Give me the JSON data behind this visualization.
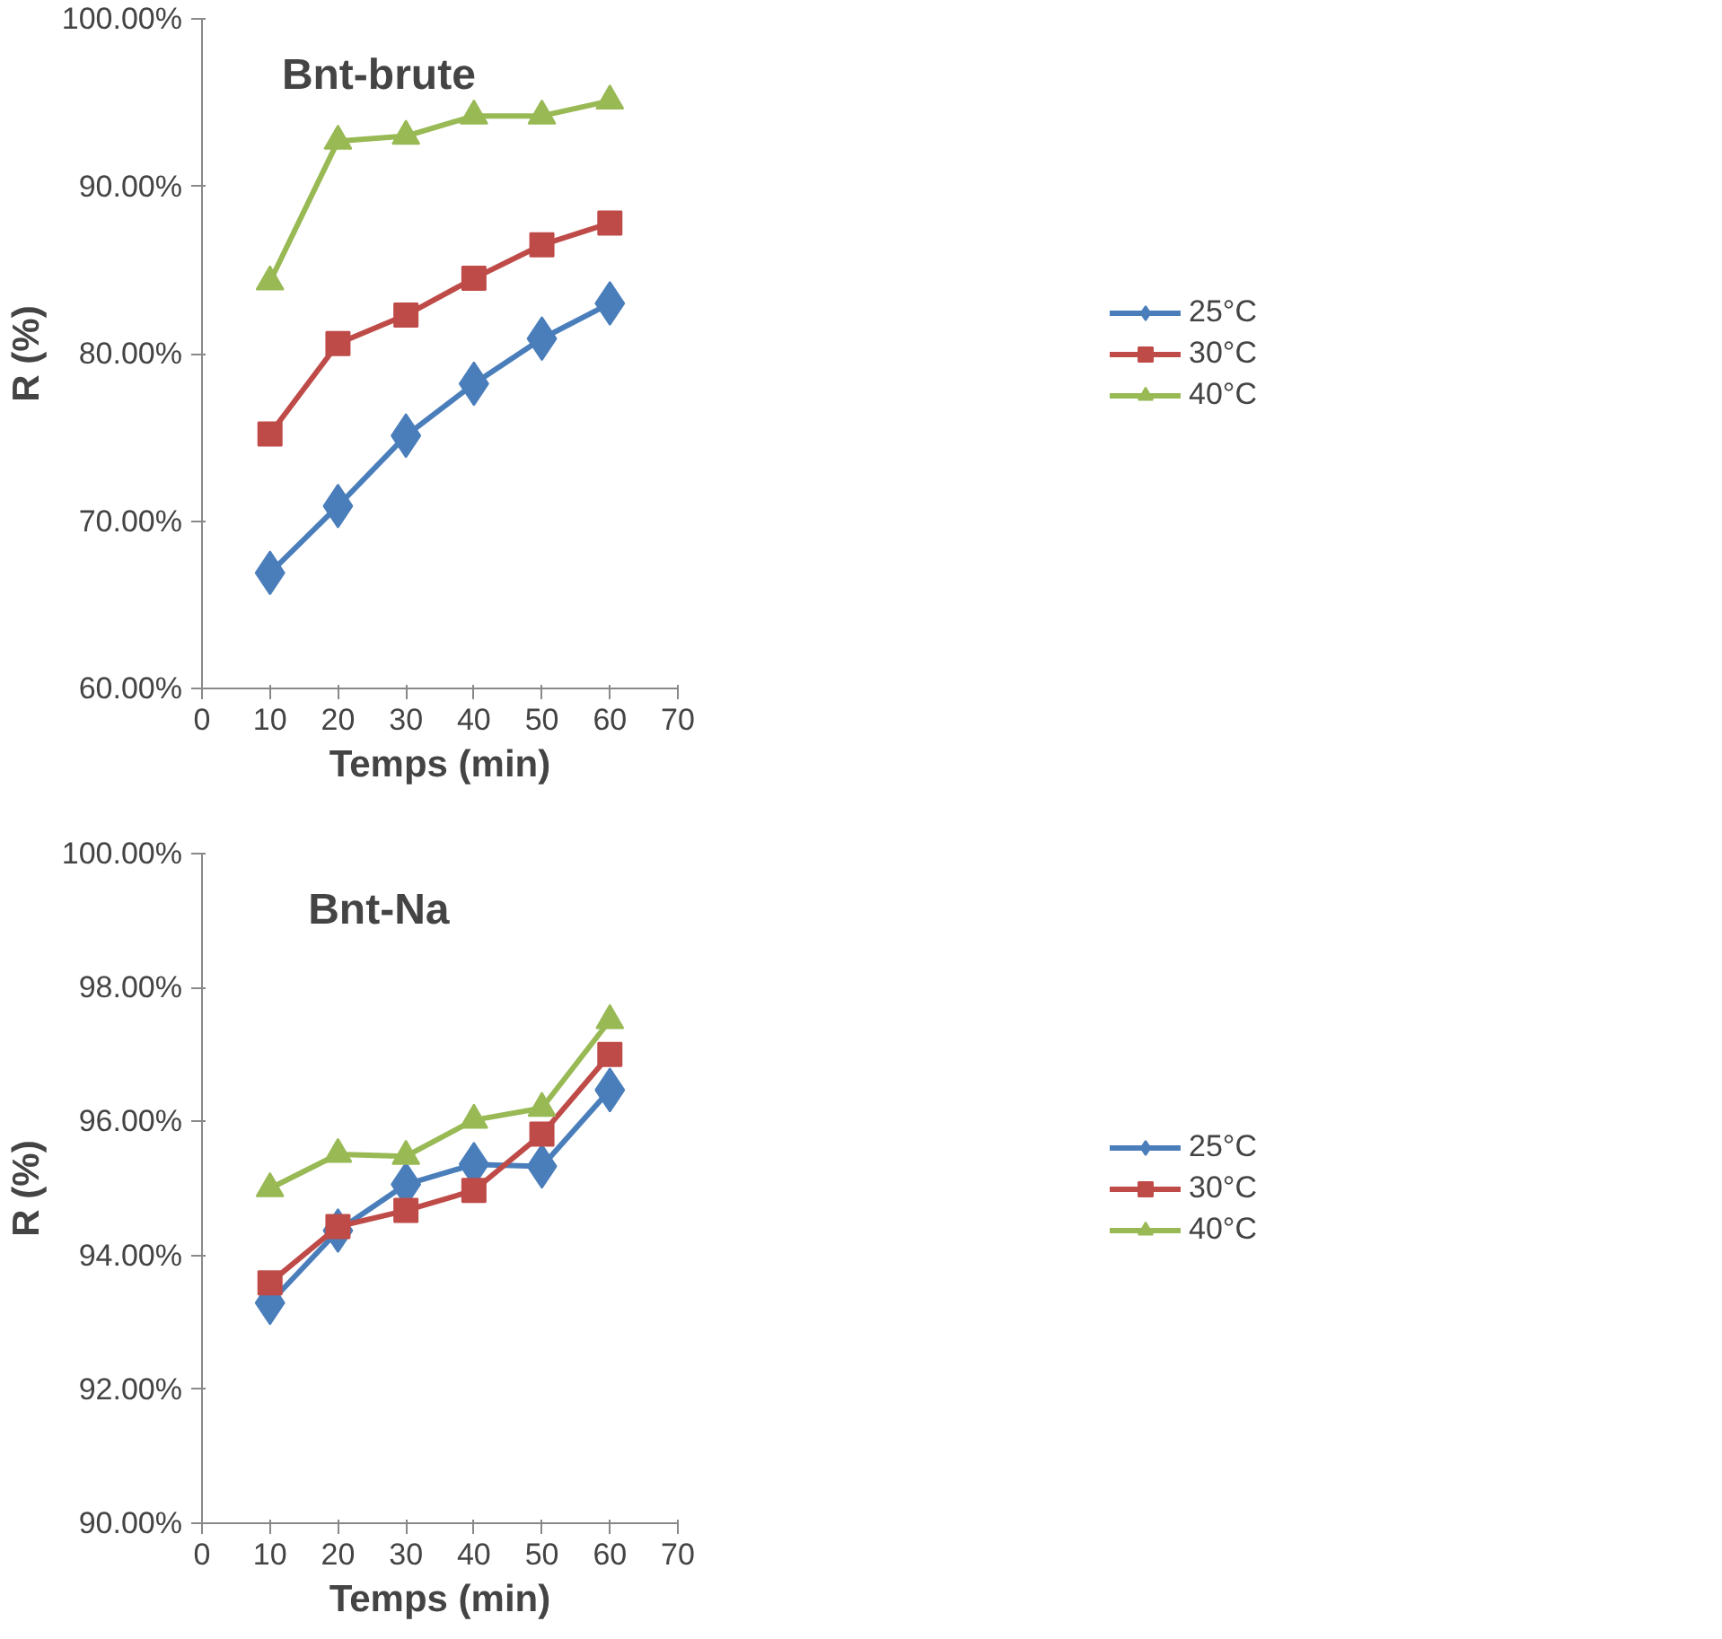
{
  "chart_data": [
    {
      "type": "line",
      "title": "Bnt-brute",
      "xlabel": "Temps (min)",
      "ylabel": "R (%)",
      "x": [
        10,
        20,
        30,
        40,
        50,
        60
      ],
      "xlim": [
        0,
        70
      ],
      "xticks": [
        0,
        10,
        20,
        30,
        40,
        50,
        60,
        70
      ],
      "ylim": [
        60,
        100
      ],
      "yticks": [
        {
          "value": 60,
          "label": "60.00%"
        },
        {
          "value": 70,
          "label": "70.00%"
        },
        {
          "value": 80,
          "label": "80.00%"
        },
        {
          "value": 90,
          "label": "90.00%"
        },
        {
          "value": 100,
          "label": "100.00%"
        }
      ],
      "grid": false,
      "legend": "right",
      "line_style": "solid",
      "series": [
        {
          "name": "25°C",
          "color": "#4a7ebb",
          "marker": "diamond",
          "values": [
            66.9,
            70.9,
            75.1,
            78.2,
            80.9,
            83.0
          ]
        },
        {
          "name": "30°C",
          "color": "#be4b48",
          "marker": "square",
          "values": [
            75.2,
            80.6,
            82.3,
            84.5,
            86.5,
            87.8
          ]
        },
        {
          "name": "40°C",
          "color": "#98b954",
          "marker": "triangle",
          "values": [
            84.3,
            92.7,
            93.0,
            94.2,
            94.2,
            95.1
          ]
        }
      ]
    },
    {
      "type": "line",
      "title": "Bnt-Na",
      "xlabel": "Temps (min)",
      "ylabel": "R (%)",
      "x": [
        10,
        20,
        30,
        40,
        50,
        60
      ],
      "xlim": [
        0,
        70
      ],
      "xticks": [
        0,
        10,
        20,
        30,
        40,
        50,
        60,
        70
      ],
      "ylim": [
        90,
        100
      ],
      "yticks": [
        {
          "value": 90,
          "label": "90.00%"
        },
        {
          "value": 92,
          "label": "92.00%"
        },
        {
          "value": 94,
          "label": "94.00%"
        },
        {
          "value": 96,
          "label": "96.00%"
        },
        {
          "value": 98,
          "label": "98.00%"
        },
        {
          "value": 100,
          "label": "100.00%"
        }
      ],
      "grid": false,
      "legend": "right",
      "line_style": "solid",
      "series": [
        {
          "name": "25°C",
          "color": "#4a7ebb",
          "marker": "diamond",
          "values": [
            93.29,
            94.37,
            95.06,
            95.36,
            95.33,
            96.47
          ]
        },
        {
          "name": "30°C",
          "color": "#be4b48",
          "marker": "square",
          "values": [
            93.59,
            94.43,
            94.67,
            94.97,
            95.81,
            97.0
          ]
        },
        {
          "name": "40°C",
          "color": "#98b954",
          "marker": "triangle",
          "values": [
            95.0,
            95.51,
            95.48,
            96.02,
            96.2,
            97.51
          ]
        }
      ]
    }
  ]
}
